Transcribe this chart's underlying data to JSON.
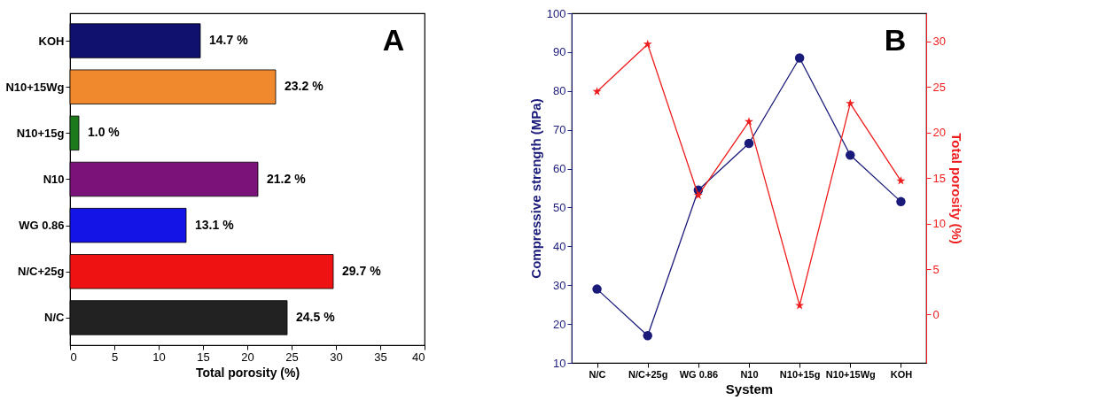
{
  "chart_data": [
    {
      "type": "bar",
      "orientation": "horizontal",
      "categories": [
        "KOH",
        "N10+15Wg",
        "N10+15g",
        "N10",
        "WG 0.86",
        "N/C+25g",
        "N/C"
      ],
      "values": [
        14.7,
        23.2,
        1.0,
        21.2,
        13.1,
        29.7,
        24.5
      ],
      "colors": [
        "#10106e",
        "#f0882e",
        "#1c7a1c",
        "#7a127a",
        "#1414e6",
        "#ee1212",
        "#222222"
      ],
      "value_labels": [
        "14.7 %",
        "23.2 %",
        "1.0 %",
        "21.2 %",
        "13.1 %",
        "29.7 %",
        "24.5 %"
      ],
      "xlim": [
        0,
        40
      ],
      "xticks": [
        0,
        5,
        10,
        15,
        20,
        25,
        30,
        35,
        40
      ],
      "xlabel": "Total porosity (%)",
      "annotations": [
        "A"
      ]
    },
    {
      "type": "line",
      "categories": [
        "N/C",
        "N/C+25g",
        "WG 0.86",
        "N10",
        "N10+15g",
        "N10+15Wg",
        "KOH"
      ],
      "series": [
        {
          "color": "#1a1a7a",
          "axis": "y",
          "marker": "circle",
          "values": [
            29,
            17,
            54.5,
            66.5,
            88.5,
            63.5,
            51.5
          ]
        },
        {
          "color": "#ee1c1c",
          "axis": "y2",
          "marker": "star",
          "values": [
            24.5,
            29.7,
            13.1,
            21.2,
            1.0,
            23.2,
            14.7
          ]
        }
      ],
      "ylim": [
        10,
        100
      ],
      "yticks": [
        10,
        20,
        30,
        40,
        50,
        60,
        70,
        80,
        90,
        100
      ],
      "y2lim": [
        -5.3,
        33.1
      ],
      "y2ticks": [
        0,
        5,
        10,
        15,
        20,
        25,
        30
      ],
      "xlabel": "System",
      "ylabel": "Compressive strength (MPa)",
      "y2label": "Total porosity (%)",
      "annotations": [
        "B"
      ]
    }
  ]
}
